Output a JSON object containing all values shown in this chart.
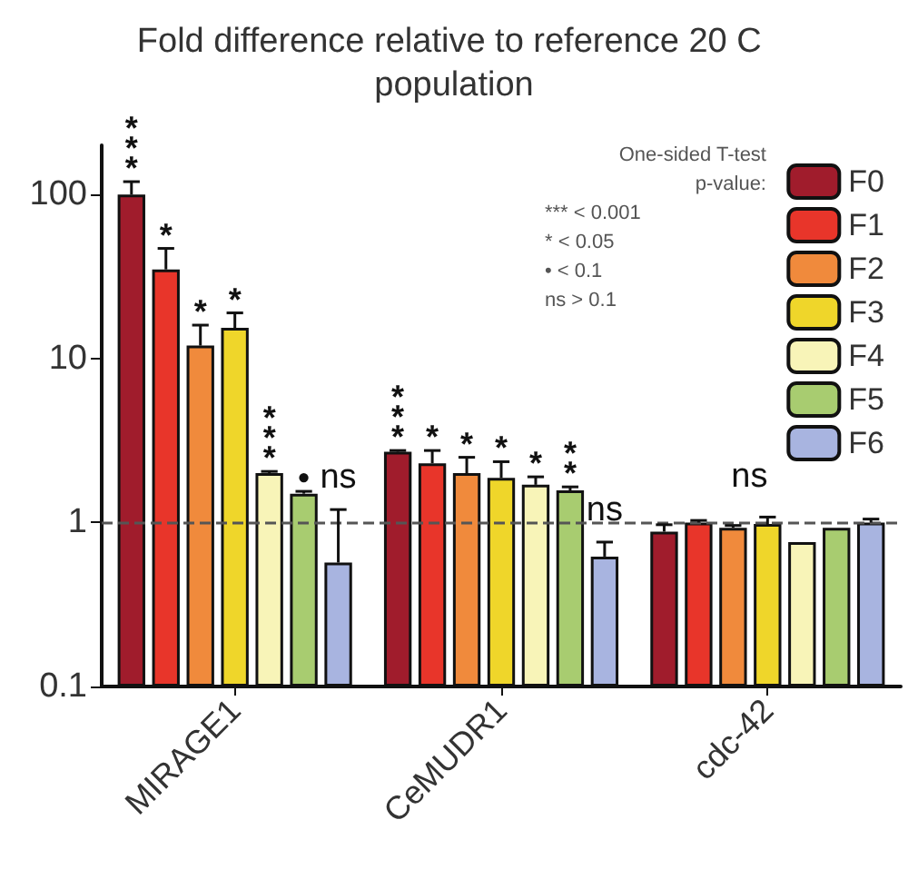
{
  "chart_data": {
    "type": "bar",
    "title": "Fold difference relative to reference 20 C population",
    "categories": [
      "MIRAGE1",
      "CeMUDR1",
      "cdc-42"
    ],
    "series": [
      {
        "name": "F0",
        "color": "#a01c2c",
        "values": [
          100,
          2.7,
          0.88
        ],
        "errors": [
          [
            100,
            120
          ],
          [
            2.7,
            2.75
          ],
          [
            0.88,
            0.97
          ]
        ],
        "value_labels": [
          "***",
          "***",
          null
        ]
      },
      {
        "name": "F1",
        "color": "#e8352a",
        "values": [
          35,
          2.3,
          1.0
        ],
        "errors": [
          [
            35,
            47
          ],
          [
            2.3,
            2.75
          ],
          [
            1.0,
            1.03
          ]
        ],
        "value_labels": [
          "*",
          "*",
          null
        ]
      },
      {
        "name": "F2",
        "color": "#f08a3c",
        "values": [
          12,
          2.0,
          0.93
        ],
        "errors": [
          [
            12,
            16
          ],
          [
            2.0,
            2.5
          ],
          [
            0.93,
            0.96
          ]
        ],
        "value_labels": [
          "*",
          "*",
          null
        ]
      },
      {
        "name": "F3",
        "color": "#efd62a",
        "values": [
          15.4,
          1.87,
          0.98
        ],
        "errors": [
          [
            15.4,
            19
          ],
          [
            1.87,
            2.35
          ],
          [
            0.98,
            1.08
          ]
        ],
        "value_labels": [
          "*",
          "*",
          null
        ]
      },
      {
        "name": "F4",
        "color": "#f8f4b8",
        "values": [
          2.0,
          1.7,
          0.76
        ],
        "errors": [
          [
            2.0,
            2.05
          ],
          [
            1.7,
            1.9
          ],
          null
        ],
        "value_labels": [
          "***",
          "*",
          null
        ]
      },
      {
        "name": "F5",
        "color": "#a8cc70",
        "values": [
          1.5,
          1.57,
          0.93
        ],
        "errors": [
          [
            1.5,
            1.55
          ],
          [
            1.57,
            1.65
          ],
          null
        ],
        "value_labels": [
          "•",
          "**",
          null
        ]
      },
      {
        "name": "F6",
        "color": "#a8b4e0",
        "values": [
          0.57,
          0.62,
          1.0
        ],
        "errors": [
          [
            0.57,
            1.2
          ],
          [
            0.62,
            0.76
          ],
          [
            1.0,
            1.05
          ]
        ],
        "value_labels": [
          "ns",
          "ns",
          null
        ]
      }
    ],
    "log": "y",
    "ylim": [
      0.1,
      200
    ],
    "yticks": [
      0.1,
      1,
      10,
      100
    ],
    "ref_lines": [
      {
        "axis": "y",
        "value": 1,
        "line_style": "dashed",
        "color": "#555555"
      }
    ],
    "annotations": [
      "ns",
      "One-sided T-test",
      "p-value:",
      "*** < 0.001",
      "* < 0.05",
      "• < 0.1",
      "ns > 0.1"
    ],
    "legend": "top right",
    "grid": false
  }
}
